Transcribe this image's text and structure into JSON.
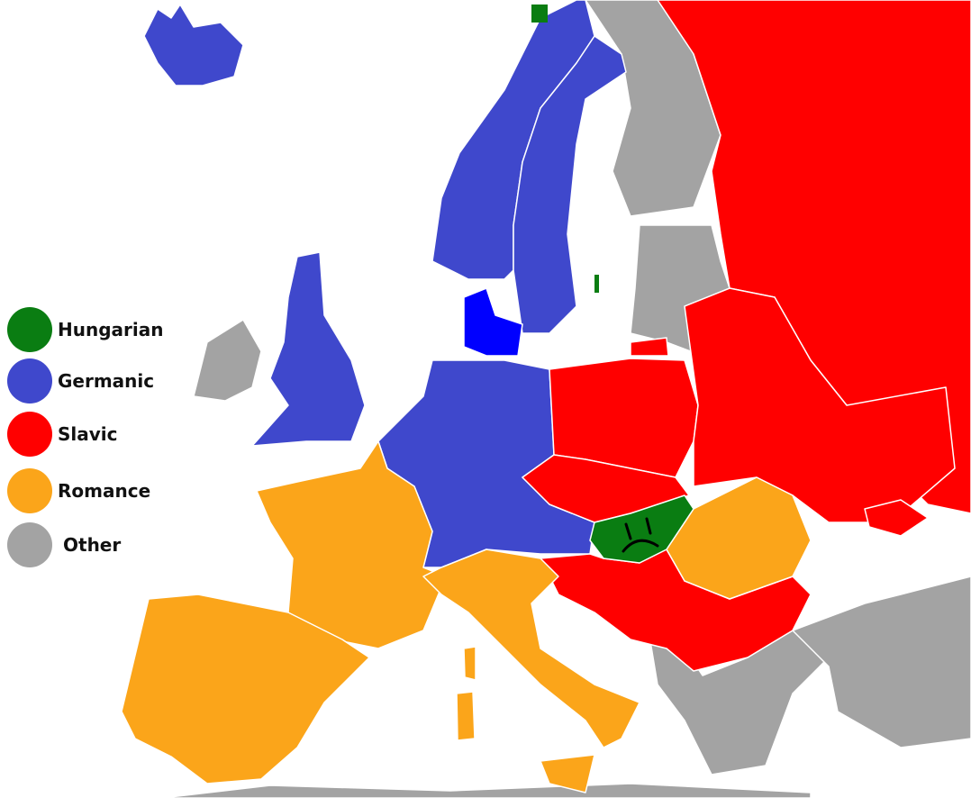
{
  "colors": {
    "hungarian": "#0a7d12",
    "germanic": "#3f48cc",
    "slavic": "#ff0000",
    "romance": "#fba51a",
    "other": "#a3a3a3"
  },
  "legend": [
    {
      "label": "Hungarian",
      "color": "#0a7d12"
    },
    {
      "label": "Germanic",
      "color": "#3f48cc"
    },
    {
      "label": "Slavic",
      "color": "#ff0000"
    },
    {
      "label": "Romance",
      "color": "#fba51a"
    },
    {
      "label": "Other",
      "color": "#a3a3a3"
    }
  ]
}
